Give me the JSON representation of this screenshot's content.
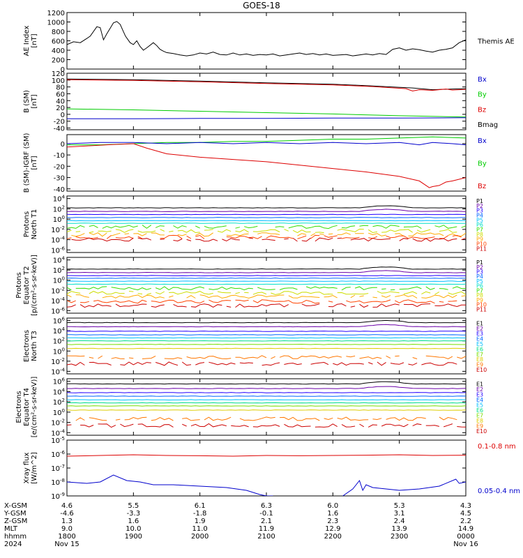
{
  "title": "GOES-18",
  "colors": {
    "black": "#000000",
    "red": "#dd0000",
    "green": "#00cc00",
    "blue": "#0000cc",
    "p_colors": [
      "#000000",
      "#6a00a8",
      "#2200ff",
      "#0066ff",
      "#00bfff",
      "#00e0c8",
      "#33dd00",
      "#ccdd00",
      "#ffaa00",
      "#ff4400",
      "#cc0000"
    ],
    "e_colors": [
      "#000000",
      "#6a00a8",
      "#2200ff",
      "#0066ff",
      "#00bfff",
      "#00dd88",
      "#77dd00",
      "#ddcc00",
      "#ff7700",
      "#cc0000"
    ]
  },
  "chart_data": [
    {
      "id": "ae",
      "type": "line",
      "ylabel_lines": [
        "AE Index",
        "[nT]"
      ],
      "ylim": [
        0,
        1200
      ],
      "yticks": [
        "0",
        "200",
        "400",
        "600",
        "800",
        "1000",
        "1200"
      ],
      "ytick_values": [
        0,
        200,
        400,
        600,
        800,
        1000,
        1200
      ],
      "legend": [
        {
          "label": "Themis AE",
          "color": "#000000"
        }
      ],
      "series": [
        {
          "name": "Themis AE",
          "color": "#000000",
          "x": [
            0,
            0.1,
            0.2,
            0.3,
            0.35,
            0.45,
            0.5,
            0.55,
            0.6,
            0.7,
            0.75,
            0.8,
            0.88,
            0.95,
            1.0,
            1.05,
            1.1,
            1.15,
            1.2,
            1.3,
            1.35,
            1.4,
            1.45,
            1.5,
            1.6,
            1.7,
            1.8,
            1.9,
            2.0,
            2.1,
            2.2,
            2.3,
            2.4,
            2.5,
            2.6,
            2.7,
            2.8,
            2.9,
            3.0,
            3.1,
            3.2,
            3.3,
            3.4,
            3.5,
            3.6,
            3.7,
            3.8,
            3.9,
            4.0,
            4.1,
            4.2,
            4.3,
            4.4,
            4.5,
            4.6,
            4.7,
            4.8,
            4.9,
            5.0,
            5.1,
            5.2,
            5.3,
            5.4,
            5.5,
            5.6,
            5.7,
            5.8,
            5.9,
            6.0
          ],
          "y": [
            520,
            580,
            560,
            650,
            700,
            900,
            880,
            620,
            750,
            980,
            1010,
            950,
            700,
            560,
            520,
            600,
            480,
            400,
            450,
            560,
            500,
            420,
            380,
            350,
            330,
            300,
            280,
            300,
            340,
            320,
            360,
            310,
            300,
            340,
            300,
            320,
            290,
            310,
            300,
            320,
            280,
            300,
            320,
            340,
            310,
            330,
            300,
            320,
            290,
            300,
            310,
            280,
            300,
            320,
            300,
            330,
            310,
            420,
            450,
            400,
            430,
            410,
            380,
            360,
            400,
            420,
            450,
            560,
            620
          ]
        }
      ]
    },
    {
      "id": "bsm",
      "type": "line",
      "ylabel_lines": [
        "B (SM)",
        "[nT]"
      ],
      "ylim": [
        -45,
        120
      ],
      "yticks": [
        "-40",
        "-20",
        "0",
        "20",
        "40",
        "60",
        "80",
        "100",
        "120"
      ],
      "ytick_values": [
        -40,
        -20,
        0,
        20,
        40,
        60,
        80,
        100,
        120
      ],
      "legend": [
        {
          "label": "Bx",
          "color": "#0000cc"
        },
        {
          "label": "By",
          "color": "#00cc00"
        },
        {
          "label": "Bz",
          "color": "#dd0000"
        },
        {
          "label": "Bmag",
          "color": "#000000"
        }
      ],
      "series": [
        {
          "name": "Bmag",
          "color": "#000000",
          "x": [
            0,
            1,
            2,
            3,
            4,
            4.6,
            5.2,
            5.5,
            5.8,
            6.0
          ],
          "y": [
            103,
            101,
            97,
            92,
            88,
            83,
            77,
            72,
            74,
            75
          ]
        },
        {
          "name": "Bz",
          "color": "#dd0000",
          "x": [
            0,
            1,
            2,
            3,
            4,
            4.6,
            5.1,
            5.2,
            5.3,
            5.5,
            5.7,
            5.8,
            6.0
          ],
          "y": [
            101,
            99,
            95,
            90,
            86,
            81,
            75,
            68,
            72,
            70,
            74,
            71,
            73
          ]
        },
        {
          "name": "By",
          "color": "#00cc00",
          "x": [
            0,
            1,
            2,
            3,
            4,
            5,
            6
          ],
          "y": [
            16,
            13,
            9,
            5,
            1,
            -4,
            -8
          ]
        },
        {
          "name": "Bx",
          "color": "#0000cc",
          "x": [
            0,
            1,
            2,
            3,
            4,
            5,
            6
          ],
          "y": [
            -13,
            -13,
            -12,
            -12,
            -11,
            -11,
            -10
          ]
        }
      ]
    },
    {
      "id": "bmi",
      "type": "line",
      "ylabel_lines": [
        "B (SM)-IGRF (SM)",
        "[nT]"
      ],
      "ylim": [
        -42,
        8
      ],
      "yticks": [
        "-40",
        "-30",
        "-20",
        "-10",
        "0"
      ],
      "ytick_values": [
        -40,
        -30,
        -20,
        -10,
        0
      ],
      "legend": [
        {
          "label": "Bx",
          "color": "#0000cc"
        },
        {
          "label": "By",
          "color": "#00cc00"
        },
        {
          "label": "Bz",
          "color": "#dd0000"
        }
      ],
      "series": [
        {
          "name": "By",
          "color": "#00cc00",
          "x": [
            0,
            0.5,
            1.0,
            1.5,
            2,
            2.5,
            3,
            3.5,
            4,
            4.5,
            5,
            5.5,
            6
          ],
          "y": [
            -1,
            -1,
            0,
            1,
            1,
            2,
            2,
            3,
            4,
            4,
            5,
            6,
            5
          ]
        },
        {
          "name": "Bx",
          "color": "#0000cc",
          "x": [
            0,
            0.5,
            1,
            1.5,
            2,
            2.5,
            3,
            3.5,
            4,
            4.5,
            5,
            5.3,
            5.5,
            5.8,
            6
          ],
          "y": [
            0,
            1,
            1,
            0,
            1,
            0,
            1,
            0,
            1,
            0,
            1,
            -1,
            1,
            0,
            -1
          ]
        },
        {
          "name": "Bz",
          "color": "#dd0000",
          "x": [
            0,
            0.3,
            0.6,
            1.0,
            1.2,
            1.5,
            2,
            2.5,
            3,
            3.5,
            4,
            4.5,
            5,
            5.3,
            5.45,
            5.5,
            5.6,
            5.7,
            5.8,
            6.0
          ],
          "y": [
            -3,
            -2,
            -1,
            0,
            -4,
            -9,
            -12,
            -14,
            -16,
            -19,
            -22,
            -25,
            -29,
            -33,
            -39,
            -38,
            -37,
            -34,
            -33,
            -30
          ]
        }
      ]
    },
    {
      "id": "p_north",
      "type": "line",
      "log_y": true,
      "ylabel_lines": [
        "Protons",
        "North T1"
      ],
      "ylim": [
        -6.5,
        4.5
      ],
      "yticks": [
        "10^4",
        "10^2",
        "10^0",
        "10^-2",
        "10^-4",
        "10^-6"
      ],
      "ytick_values": [
        4,
        2,
        0,
        -2,
        -4,
        -6
      ],
      "legend_labels": [
        "P1",
        "P2",
        "P3",
        "P4",
        "P5",
        "P6",
        "P7",
        "P8",
        "P9",
        "P10",
        "P11"
      ],
      "levels": [
        2.2,
        1.5,
        0.9,
        0.3,
        -0.3,
        -0.8,
        -1.5,
        -2.3,
        -3.0,
        -3.5,
        -4.0
      ]
    },
    {
      "id": "p_eq",
      "type": "line",
      "log_y": true,
      "ylabel_lines": [
        "Protons",
        "Equator T2",
        "[p/(cm²-s-sr-keV)]"
      ],
      "ylim": [
        -6.5,
        4.5
      ],
      "yticks": [
        "10^4",
        "10^2",
        "10^0",
        "10^-2",
        "10^-4",
        "10^-6"
      ],
      "ytick_values": [
        4,
        2,
        0,
        -2,
        -4,
        -6
      ],
      "legend_labels": [
        "P1",
        "P2",
        "P3",
        "P4",
        "P5",
        "P6",
        "P7",
        "P8",
        "P9",
        "P10",
        "P11"
      ],
      "levels": [
        2.2,
        1.5,
        0.9,
        0.4,
        -0.2,
        -0.8,
        -1.6,
        -2.5,
        -3.2,
        -4.2,
        -5.0
      ]
    },
    {
      "id": "e_north",
      "type": "line",
      "log_y": true,
      "ylabel_lines": [
        "Electrons",
        "North T3"
      ],
      "ylim": [
        -4.5,
        6.5
      ],
      "yticks": [
        "10^6",
        "10^4",
        "10^2",
        "10^0",
        "10^-2",
        "10^-4"
      ],
      "ytick_values": [
        6,
        4,
        2,
        0,
        -2,
        -4
      ],
      "legend_labels": [
        "E1",
        "E2",
        "E3",
        "E4",
        "E5",
        "E6",
        "E7",
        "E8",
        "E9",
        "E10"
      ],
      "levels": [
        5.6,
        4.8,
        3.9,
        3.2,
        2.6,
        2.0,
        1.3,
        0.5,
        -1.2,
        -2.5
      ]
    },
    {
      "id": "e_eq",
      "type": "line",
      "log_y": true,
      "ylabel_lines": [
        "Electrons",
        "Equator T4",
        "[e/(cm²-s-sr-keV)]"
      ],
      "ylim": [
        -4.5,
        6.5
      ],
      "yticks": [
        "10^6",
        "10^4",
        "10^2",
        "10^0",
        "10^-2",
        "10^-4"
      ],
      "ytick_values": [
        6,
        4,
        2,
        0,
        -2,
        -4
      ],
      "legend_labels": [
        "E1",
        "E2",
        "E3",
        "E4",
        "E5",
        "E6",
        "E7",
        "E8",
        "E9",
        "E10"
      ],
      "levels": [
        5.5,
        4.6,
        3.8,
        3.1,
        2.4,
        1.8,
        1.2,
        0.4,
        -1.3,
        -2.6
      ]
    },
    {
      "id": "xray",
      "type": "line",
      "log_y": true,
      "ylabel_lines": [
        "Xray flux",
        "[W/m^2]"
      ],
      "ylim": [
        -9,
        -5
      ],
      "yticks": [
        "10^-5",
        "10^-6",
        "10^-7",
        "10^-8",
        "10^-9"
      ],
      "ytick_values": [
        -5,
        -6,
        -7,
        -8,
        -9
      ],
      "legend": [
        {
          "label": "0.1-0.8 nm",
          "color": "#dd0000"
        },
        {
          "label": "0.05-0.4 nm",
          "color": "#0000cc"
        }
      ],
      "series": [
        {
          "name": "0.1-0.8 nm",
          "color": "#dd0000",
          "x": [
            0,
            0.5,
            1,
            1.5,
            2,
            2.5,
            3,
            3.5,
            4,
            4.5,
            5,
            5.5,
            6
          ],
          "y": [
            -6.15,
            -6.1,
            -6.05,
            -6.1,
            -6.12,
            -6.15,
            -6.1,
            -6.12,
            -6.1,
            -6.08,
            -6.05,
            -6.1,
            -6.08
          ]
        },
        {
          "name": "0.05-0.4 nm",
          "color": "#0000cc",
          "x": [
            0,
            0.3,
            0.5,
            0.7,
            0.9,
            1.1,
            1.3,
            1.6,
            2.0,
            2.4,
            2.7,
            2.9,
            3.0,
            3.1,
            null,
            4.15,
            4.3,
            4.4,
            4.45,
            4.5,
            4.6,
            4.8,
            5.0,
            5.3,
            5.6,
            5.85,
            5.9,
            6.0
          ],
          "y": [
            -8.0,
            -8.1,
            -8.0,
            -7.5,
            -7.9,
            -8.0,
            -8.2,
            -8.2,
            -8.3,
            -8.4,
            -8.6,
            -8.9,
            -9.0,
            -9.0,
            null,
            -9.0,
            -8.5,
            -7.9,
            -8.6,
            -8.2,
            -8.4,
            -8.5,
            -8.6,
            -8.5,
            -8.3,
            -7.8,
            -8.1,
            -8.0
          ]
        }
      ]
    }
  ],
  "xaxis": {
    "ticks": [
      0,
      1,
      2,
      3,
      4,
      5,
      6
    ],
    "row_labels": [
      "X-GSM",
      "Y-GSM",
      "Z-GSM",
      "MLT",
      "hhmm",
      "2024"
    ],
    "rows": [
      [
        "4.6",
        "5.5",
        "6.1",
        "6.3",
        "6.0",
        "5.3",
        "4.3"
      ],
      [
        "-4.6",
        "-3.3",
        "-1.8",
        "-0.1",
        "1.6",
        "3.1",
        "4.5"
      ],
      [
        "1.3",
        "1.6",
        "1.9",
        "2.1",
        "2.3",
        "2.4",
        "2.2"
      ],
      [
        "9.0",
        "10.0",
        "11.0",
        "11.9",
        "12.9",
        "13.9",
        "14.9"
      ],
      [
        "1800",
        "1900",
        "2000",
        "2100",
        "2200",
        "2300",
        "0000"
      ],
      [
        "Nov 15",
        "",
        "",
        "",
        "",
        "",
        "Nov 16"
      ]
    ]
  }
}
